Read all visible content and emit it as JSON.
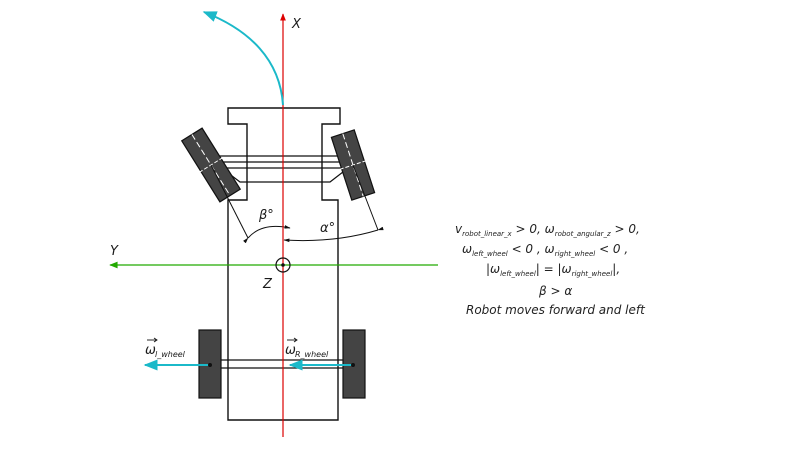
{
  "axes": {
    "x_label": "X",
    "y_label": "Y",
    "z_label": "Z"
  },
  "angles": {
    "beta": "β°",
    "alpha": "α°"
  },
  "wheels": {
    "left_omega_symbol": "ω",
    "left_omega_sub": "l_wheel",
    "right_omega_symbol": "ω",
    "right_omega_sub": "R_wheel"
  },
  "conditions": {
    "line1": {
      "v": "v",
      "v_sub": "robot_linear_x",
      "mid": " > 0, ",
      "w": "ω",
      "w_sub": "robot_angular_z",
      "tail": " > 0,"
    },
    "line2": {
      "w1": "ω",
      "w1_sub": "left_wheel",
      "mid": " < 0 , ",
      "w2": "ω",
      "w2_sub": "right_wheel",
      "tail": " < 0 ,"
    },
    "line3": {
      "open1": "|ω",
      "sub1": "left_wheel",
      "mid": "| = |ω",
      "sub2": "right_wheel",
      "tail": "|,"
    },
    "line4": "β > α",
    "line5": "Robot moves forward and left"
  },
  "colors": {
    "x_axis": "#dd0000",
    "y_axis": "#22aa00",
    "arrows": "#1bb9c9",
    "wheel": "#444444",
    "line": "#111111"
  }
}
